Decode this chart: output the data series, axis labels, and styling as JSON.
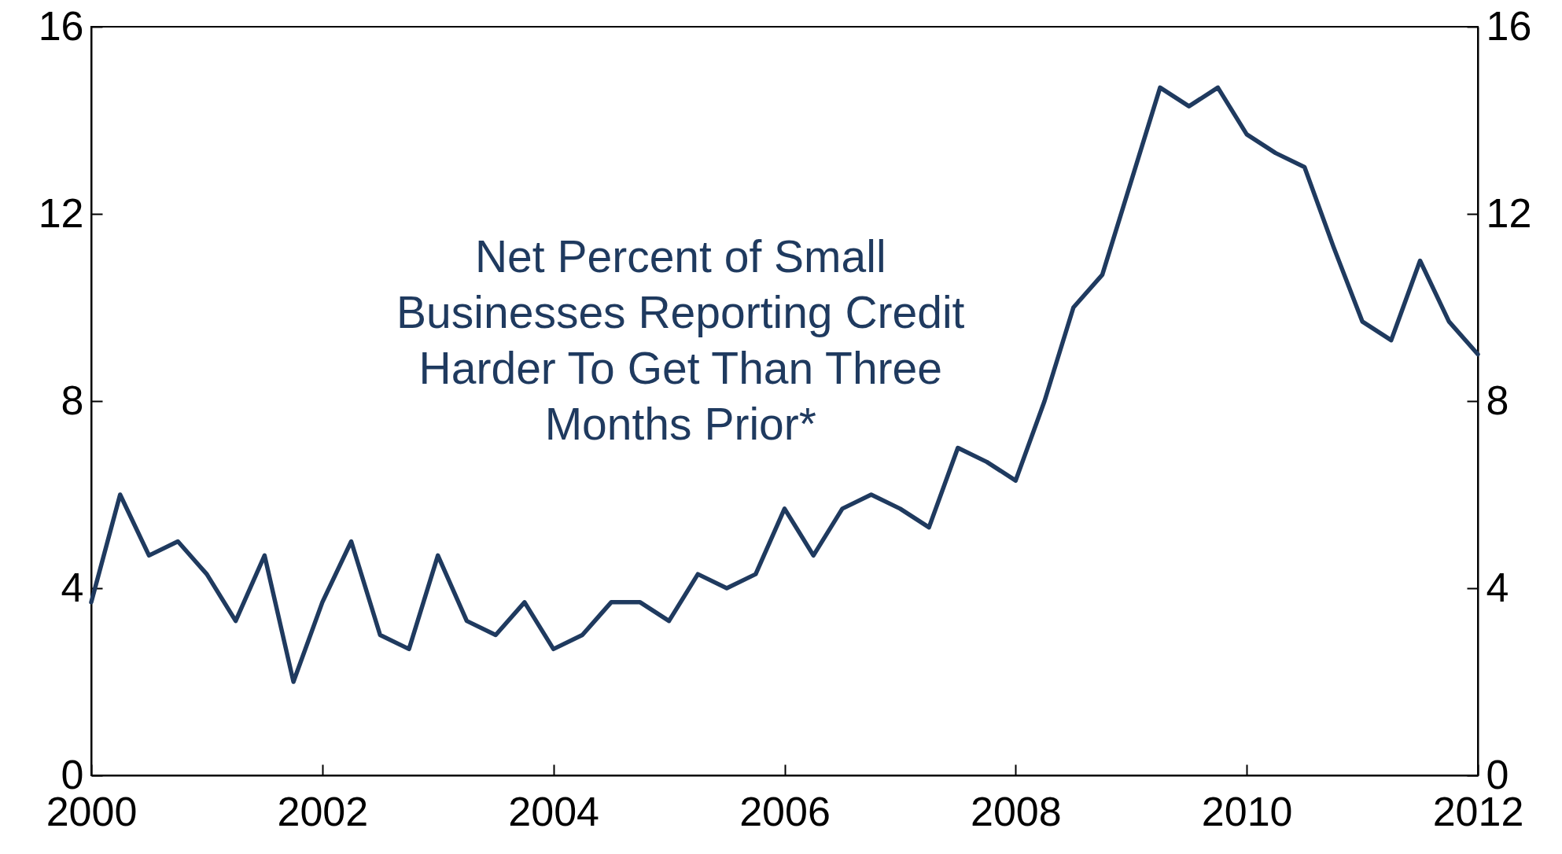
{
  "chart_data": {
    "type": "line",
    "x": [
      2000,
      2000.25,
      2000.5,
      2000.75,
      2001,
      2001.25,
      2001.5,
      2001.75,
      2002,
      2002.25,
      2002.5,
      2002.75,
      2003,
      2003.25,
      2003.5,
      2003.75,
      2004,
      2004.25,
      2004.5,
      2004.75,
      2005,
      2005.25,
      2005.5,
      2005.75,
      2006,
      2006.25,
      2006.5,
      2006.75,
      2007,
      2007.25,
      2007.5,
      2007.75,
      2008,
      2008.25,
      2008.5,
      2008.75,
      2009,
      2009.25,
      2009.5,
      2009.75,
      2010,
      2010.25,
      2010.5,
      2010.75,
      2011,
      2011.25,
      2011.5,
      2011.75,
      2012
    ],
    "series": [
      {
        "color": "#1f3a5f",
        "values": [
          3.7,
          6.0,
          4.7,
          5.0,
          4.3,
          3.3,
          4.7,
          2.0,
          3.7,
          5.0,
          3.0,
          2.7,
          4.7,
          3.3,
          3.0,
          3.7,
          2.7,
          3.0,
          3.7,
          3.7,
          3.3,
          4.3,
          4.0,
          4.3,
          5.7,
          4.7,
          5.7,
          6.0,
          5.7,
          5.3,
          7.0,
          6.7,
          6.3,
          8.0,
          10.0,
          10.7,
          12.7,
          14.7,
          14.3,
          14.7,
          13.7,
          13.3,
          13.0,
          11.3,
          9.7,
          9.3,
          11.0,
          9.7,
          9.0
        ]
      }
    ],
    "xlim": [
      2000,
      2012
    ],
    "xticks": [
      2000,
      2002,
      2004,
      2006,
      2008,
      2010,
      2012
    ],
    "ylim": [
      0,
      16
    ],
    "yticks": [
      0,
      4,
      8,
      12,
      16
    ],
    "y2lim": [
      0,
      16
    ],
    "y2ticks": [
      0,
      4,
      8,
      12,
      16
    ],
    "annotations": [
      "Net Percent of Small\nBusinesses Reporting Credit\nHarder To Get Than Three\nMonths Prior*"
    ],
    "grid": false,
    "marker": "none",
    "line_style": "solid"
  }
}
